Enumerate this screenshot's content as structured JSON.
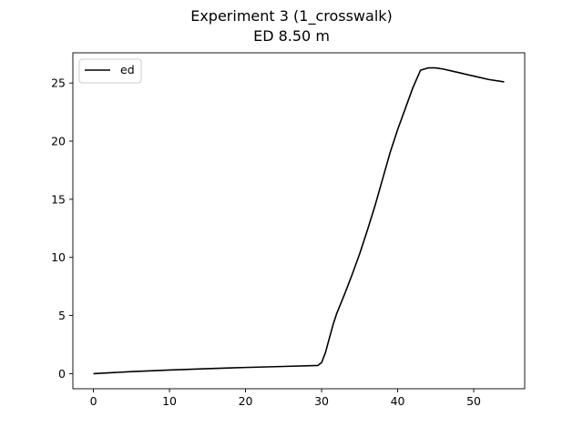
{
  "chart_data": {
    "type": "line",
    "title": "Experiment 3 (1_crosswalk)",
    "subtitle": "ED 8.50 m",
    "xlabel": "",
    "ylabel": "",
    "xlim": [
      -2.7,
      56.7
    ],
    "ylim": [
      -1.3,
      27.6
    ],
    "xticks": [
      0,
      10,
      20,
      30,
      40,
      50
    ],
    "yticks": [
      0,
      5,
      10,
      15,
      20,
      25
    ],
    "grid": false,
    "legend_position": "top-left",
    "series": [
      {
        "name": "ed",
        "color": "#000000",
        "x": [
          0,
          5,
          10,
          15,
          20,
          25,
          29.5,
          30.0,
          30.5,
          31.0,
          31.5,
          32.0,
          33.0,
          34.0,
          35.0,
          36.0,
          37.0,
          38.0,
          39.0,
          40.0,
          41.0,
          42.0,
          43.0,
          44.0,
          44.5,
          45.0,
          46.0,
          48.0,
          50.0,
          52.0,
          54.0
        ],
        "y": [
          0.0,
          0.17,
          0.31,
          0.43,
          0.53,
          0.62,
          0.7,
          0.95,
          1.8,
          3.0,
          4.2,
          5.2,
          6.8,
          8.5,
          10.3,
          12.3,
          14.4,
          16.7,
          19.0,
          21.0,
          22.8,
          24.6,
          26.1,
          26.3,
          26.3,
          26.3,
          26.2,
          25.9,
          25.6,
          25.3,
          25.1
        ]
      }
    ]
  }
}
